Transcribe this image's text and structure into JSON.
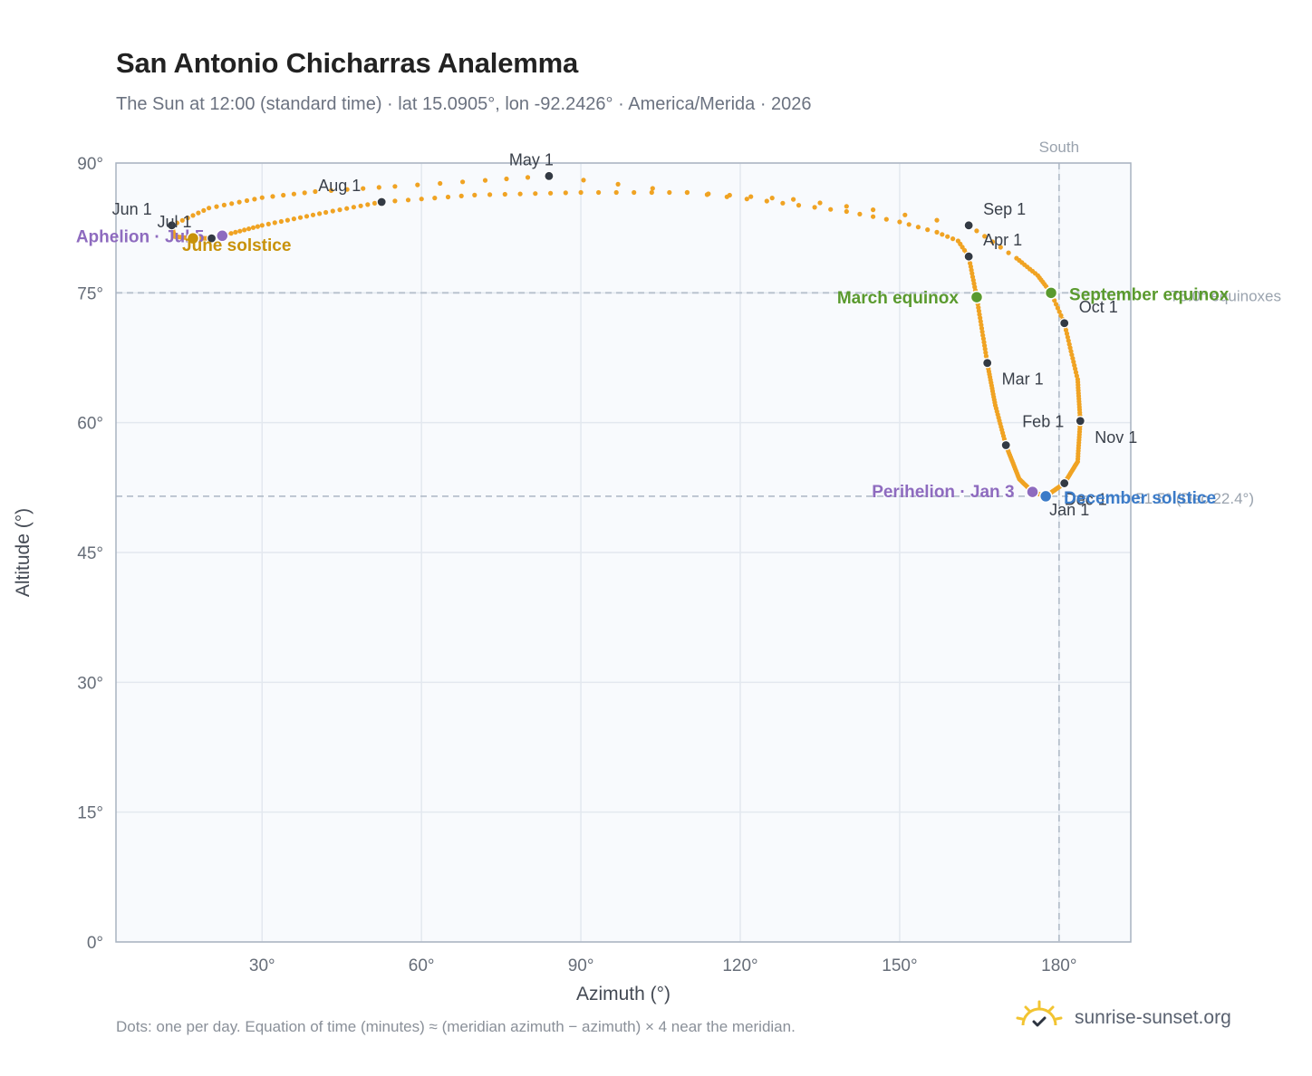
{
  "header": {
    "title": "San Antonio Chicharras Analemma",
    "subtitle": "The Sun at 12:00 (standard time) · lat 15.0905°, lon -92.2426° · America/Merida · 2026"
  },
  "footer": {
    "note": "Dots: one per day. Equation of time (minutes) ≈ (meridian azimuth − azimuth) × 4 near the meridian.",
    "brand": "sunrise-sunset.org",
    "brand_icon": "sun-icon"
  },
  "colors": {
    "curve": "#f0a323",
    "month_dot": "#333a44",
    "perihelion": "#8e6bbf",
    "aphelion": "#8e6bbf",
    "equinox": "#5a9a2e",
    "june_solstice": "#c8920a",
    "december_solstice": "#3b7bc8",
    "plot_bg": "#f8fafd",
    "grid": "#e3e8ef",
    "frame": "#a9b3c1",
    "ref_line": "#b6c0cc"
  },
  "chart_data": {
    "type": "scatter",
    "xlabel": "Azimuth (°)",
    "ylabel": "Altitude (°)",
    "xlim": [
      2.5,
      193.5
    ],
    "ylim": [
      0,
      90
    ],
    "x_ticks": [
      30,
      60,
      90,
      120,
      150,
      180
    ],
    "x_tick_labels": [
      "30°",
      "60°",
      "90°",
      "120°",
      "150°",
      "180°"
    ],
    "y_ticks": [
      0,
      15,
      30,
      45,
      60,
      75,
      90
    ],
    "y_tick_labels": [
      "0°",
      "15°",
      "30°",
      "45°",
      "60°",
      "75°",
      "90°"
    ],
    "grid": true,
    "south_label": "South",
    "south_azimuth": 180,
    "equinox_line": {
      "altitude": 75.0,
      "label": "75.0° equinoxes"
    },
    "december_line": {
      "altitude": 51.5,
      "label": "51.5° (Dec 22.4°)"
    },
    "daily_points": [
      {
        "day": 1,
        "az": 177.5,
        "alt": 51.5
      },
      {
        "day": 3,
        "az": 175.0,
        "alt": 52.0
      },
      {
        "day": 15,
        "az": 172.5,
        "alt": 53.5
      },
      {
        "day": 32,
        "az": 170.0,
        "alt": 57.4
      },
      {
        "day": 45,
        "az": 168.0,
        "alt": 62.0
      },
      {
        "day": 60,
        "az": 166.5,
        "alt": 66.9
      },
      {
        "day": 79,
        "az": 164.5,
        "alt": 74.5
      },
      {
        "day": 91,
        "az": 163.0,
        "alt": 79.2
      },
      {
        "day": 96,
        "az": 161.0,
        "alt": 81.0
      },
      {
        "day": 100,
        "az": 157.0,
        "alt": 82.0
      },
      {
        "day": 104,
        "az": 150.0,
        "alt": 83.2
      },
      {
        "day": 108,
        "az": 140.0,
        "alt": 84.4
      },
      {
        "day": 113,
        "az": 125.0,
        "alt": 85.6
      },
      {
        "day": 117,
        "az": 110.0,
        "alt": 86.6
      },
      {
        "day": 121,
        "az": 84.0,
        "alt": 88.5
      },
      {
        "day": 124,
        "az": 72.0,
        "alt": 88.0
      },
      {
        "day": 128,
        "az": 55.0,
        "alt": 87.3
      },
      {
        "day": 133,
        "az": 40.0,
        "alt": 86.7
      },
      {
        "day": 138,
        "az": 30.0,
        "alt": 86.0
      },
      {
        "day": 145,
        "az": 20.0,
        "alt": 84.8
      },
      {
        "day": 152,
        "az": 13.0,
        "alt": 82.8
      },
      {
        "day": 160,
        "az": 13.5,
        "alt": 81.5
      },
      {
        "day": 172,
        "az": 17.0,
        "alt": 81.3
      },
      {
        "day": 182,
        "az": 20.5,
        "alt": 81.3
      },
      {
        "day": 186,
        "az": 22.5,
        "alt": 81.6
      },
      {
        "day": 195,
        "az": 30.0,
        "alt": 82.8
      },
      {
        "day": 205,
        "az": 42.0,
        "alt": 84.3
      },
      {
        "day": 213,
        "az": 52.5,
        "alt": 85.5
      },
      {
        "day": 220,
        "az": 70.0,
        "alt": 86.3
      },
      {
        "day": 227,
        "az": 90.0,
        "alt": 86.6
      },
      {
        "day": 233,
        "az": 110.0,
        "alt": 86.6
      },
      {
        "day": 238,
        "az": 130.0,
        "alt": 85.8
      },
      {
        "day": 241,
        "az": 145.0,
        "alt": 84.6
      },
      {
        "day": 244,
        "az": 163.0,
        "alt": 82.8
      },
      {
        "day": 250,
        "az": 172.0,
        "alt": 79.0
      },
      {
        "day": 258,
        "az": 176.0,
        "alt": 77.0
      },
      {
        "day": 266,
        "az": 178.5,
        "alt": 75.0
      },
      {
        "day": 274,
        "az": 181.0,
        "alt": 71.5
      },
      {
        "day": 290,
        "az": 183.5,
        "alt": 65.0
      },
      {
        "day": 305,
        "az": 184.0,
        "alt": 60.2
      },
      {
        "day": 320,
        "az": 183.5,
        "alt": 55.5
      },
      {
        "day": 335,
        "az": 181.0,
        "alt": 53.0
      },
      {
        "day": 356,
        "az": 177.5,
        "alt": 51.5
      },
      {
        "day": 365,
        "az": 177.5,
        "alt": 51.5
      }
    ],
    "months": [
      {
        "label": "Jan 1",
        "az": 177.5,
        "alt": 51.6
      },
      {
        "label": "Feb 1",
        "az": 170.0,
        "alt": 57.4
      },
      {
        "label": "Mar 1",
        "az": 166.5,
        "alt": 66.9
      },
      {
        "label": "Apr 1",
        "az": 163.0,
        "alt": 79.2
      },
      {
        "label": "May 1",
        "az": 84.0,
        "alt": 88.5
      },
      {
        "label": "Jun 1",
        "az": 13.0,
        "alt": 82.8
      },
      {
        "label": "Jul 1",
        "az": 20.5,
        "alt": 81.3
      },
      {
        "label": "Aug 1",
        "az": 52.5,
        "alt": 85.5
      },
      {
        "label": "Sep 1",
        "az": 163.0,
        "alt": 82.8
      },
      {
        "label": "Oct 1",
        "az": 181.0,
        "alt": 71.5
      },
      {
        "label": "Nov 1",
        "az": 184.0,
        "alt": 60.2
      },
      {
        "label": "Dec 1",
        "az": 181.0,
        "alt": 53.0
      }
    ],
    "events": [
      {
        "label": "Perihelion · Jan 3",
        "az": 175.0,
        "alt": 52.0,
        "kind": "perihelion"
      },
      {
        "label": "Aphelion · Jul 5",
        "az": 22.5,
        "alt": 81.6,
        "kind": "aphelion"
      },
      {
        "label": "March equinox",
        "az": 164.5,
        "alt": 74.5,
        "kind": "equinox"
      },
      {
        "label": "September equinox",
        "az": 178.5,
        "alt": 75.0,
        "kind": "equinox"
      },
      {
        "label": "June solstice",
        "az": 17.0,
        "alt": 81.3,
        "kind": "june_solstice"
      },
      {
        "label": "December solstice",
        "az": 177.5,
        "alt": 51.5,
        "kind": "december_solstice"
      }
    ]
  }
}
